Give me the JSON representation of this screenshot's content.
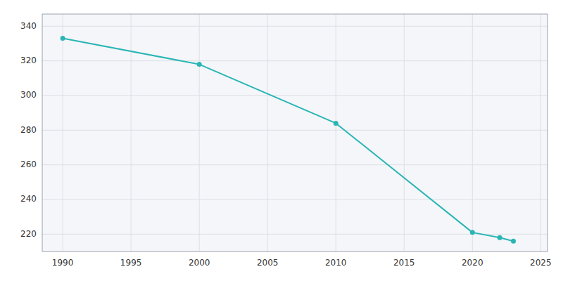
{
  "chart_data": {
    "type": "line",
    "x": [
      1990,
      2000,
      2010,
      2020,
      2022,
      2023
    ],
    "values": [
      333,
      318,
      284,
      221,
      218,
      216
    ],
    "color": "#2ab5b5",
    "marker": "circle",
    "xlim": [
      1988.5,
      2025.5
    ],
    "ylim": [
      210,
      347
    ],
    "xticks": [
      1990,
      1995,
      2000,
      2005,
      2010,
      2015,
      2020,
      2025
    ],
    "yticks": [
      220,
      240,
      260,
      280,
      300,
      320,
      340
    ],
    "grid": true
  }
}
